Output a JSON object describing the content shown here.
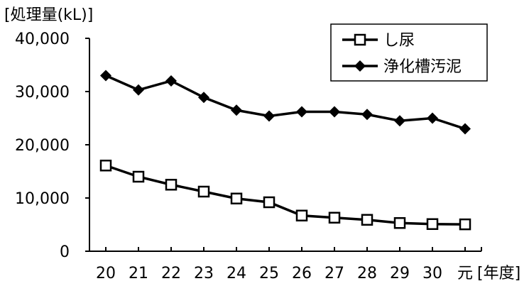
{
  "chart_data": {
    "type": "line",
    "ylabel": "[処理量(kL)]",
    "xlabel": "[年度]",
    "categories": [
      "20",
      "21",
      "22",
      "23",
      "24",
      "25",
      "26",
      "27",
      "28",
      "29",
      "30",
      "元"
    ],
    "ylim": [
      0,
      40000
    ],
    "yticks": [
      0,
      10000,
      20000,
      30000,
      40000
    ],
    "ytick_labels": [
      "0",
      "10,000",
      "20,000",
      "30,000",
      "40,000"
    ],
    "grid": false,
    "legend_position": "top-right",
    "series": [
      {
        "name": "し尿",
        "marker": "square-open",
        "color": "#000000",
        "values": [
          16100,
          14000,
          12500,
          11200,
          9900,
          9200,
          6700,
          6300,
          5900,
          5300,
          5100,
          5050
        ]
      },
      {
        "name": "浄化槽汚泥",
        "marker": "diamond-filled",
        "color": "#000000",
        "values": [
          33000,
          30300,
          32000,
          28900,
          26500,
          25400,
          26200,
          26200,
          25700,
          24500,
          25000,
          23000
        ]
      }
    ]
  }
}
